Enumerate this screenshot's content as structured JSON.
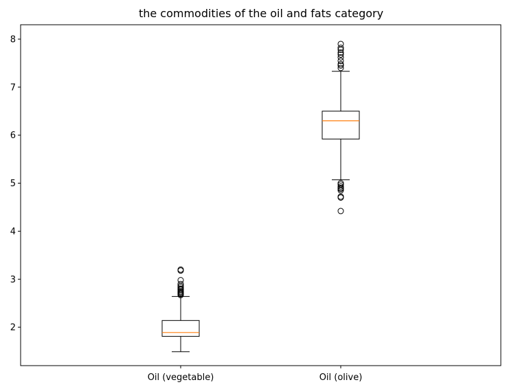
{
  "chart_data": {
    "type": "box",
    "title": "the  commodities of the oil and fats category",
    "xlabel": "",
    "ylabel": "",
    "ylim": [
      1.2,
      8.3
    ],
    "yticks": [
      2,
      3,
      4,
      5,
      6,
      7,
      8
    ],
    "grid": false,
    "categories": [
      "Oil (vegetable)",
      "Oil (olive)"
    ],
    "boxes": [
      {
        "category": "Oil (vegetable)",
        "whisker_low": 1.49,
        "q1": 1.81,
        "median": 1.89,
        "q3": 2.14,
        "whisker_high": 2.64,
        "outliers": [
          2.67,
          2.69,
          2.71,
          2.73,
          2.75,
          2.78,
          2.8,
          2.83,
          2.86,
          2.9,
          2.98,
          3.18,
          3.2
        ]
      },
      {
        "category": "Oil (olive)",
        "whisker_low": 5.07,
        "q1": 5.92,
        "median": 6.3,
        "q3": 6.5,
        "whisker_high": 7.33,
        "outliers_low": [
          4.42,
          4.7,
          4.72,
          4.85,
          4.88,
          4.9,
          4.93,
          4.97,
          5.0
        ],
        "outliers_high": [
          7.4,
          7.45,
          7.48,
          7.55,
          7.62,
          7.68,
          7.72,
          7.78,
          7.82,
          7.9
        ]
      }
    ],
    "colors": {
      "box": "#000000",
      "median": "#ff7f0e",
      "outlier": "#000000"
    }
  }
}
